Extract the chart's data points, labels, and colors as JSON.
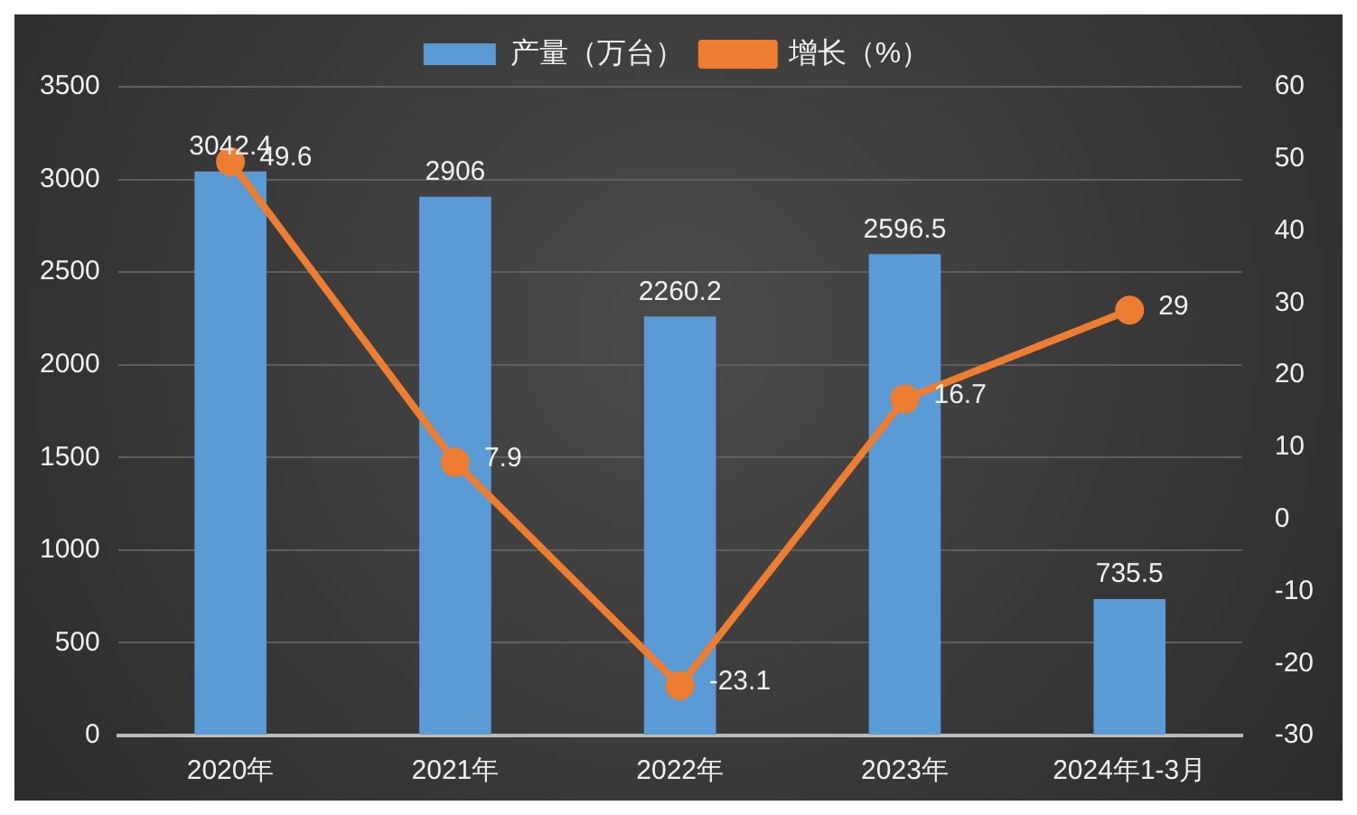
{
  "chart_data": {
    "type": "bar",
    "categories": [
      "2020年",
      "2021年",
      "2022年",
      "2023年",
      "2024年1-3月"
    ],
    "series": [
      {
        "name": "产量（万台）",
        "color": "#5b9bd5",
        "values": [
          3042.4,
          2906,
          2260.2,
          2596.5,
          735.5
        ]
      },
      {
        "name": "增长（%）",
        "type": "line",
        "axis": "y2",
        "color": "#ed7d31",
        "values": [
          49.6,
          7.9,
          -23.1,
          16.7,
          29
        ]
      }
    ],
    "ylim": [
      0,
      3500
    ],
    "yticks": [
      0,
      500,
      1000,
      1500,
      2000,
      2500,
      3000,
      3500
    ],
    "y2lim": [
      -30,
      60
    ],
    "y2ticks": [
      -30,
      -20,
      -10,
      0,
      10,
      20,
      30,
      40,
      50,
      60
    ],
    "grid": "y",
    "legend": "top",
    "marker": "circle",
    "data_labels": true
  }
}
